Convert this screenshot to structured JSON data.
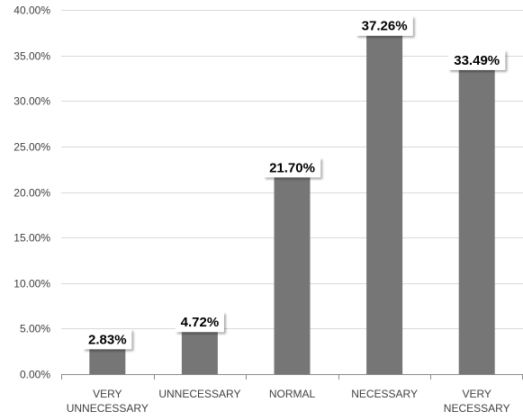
{
  "chart_data": {
    "type": "bar",
    "title": "",
    "xlabel": "",
    "ylabel": "",
    "categories": [
      [
        "VERY",
        "UNNECESSARY"
      ],
      [
        "UNNECESSARY"
      ],
      [
        "NORMAL"
      ],
      [
        "NECESSARY"
      ],
      [
        "VERY",
        "NECESSARY"
      ]
    ],
    "values": [
      2.83,
      4.72,
      21.7,
      37.26,
      33.49
    ],
    "value_labels": [
      "2.83%",
      "4.72%",
      "21.70%",
      "37.26%",
      "33.49%"
    ],
    "ylim": [
      0,
      40
    ],
    "yticks": [
      0,
      5,
      10,
      15,
      20,
      25,
      30,
      35,
      40
    ],
    "ytick_labels": [
      "0.00%",
      "5.00%",
      "10.00%",
      "15.00%",
      "20.00%",
      "25.00%",
      "30.00%",
      "35.00%",
      "40.00%"
    ],
    "grid": true,
    "legend": "none",
    "colors": {
      "bar": "#767676",
      "label_box": "#ffffff"
    }
  }
}
